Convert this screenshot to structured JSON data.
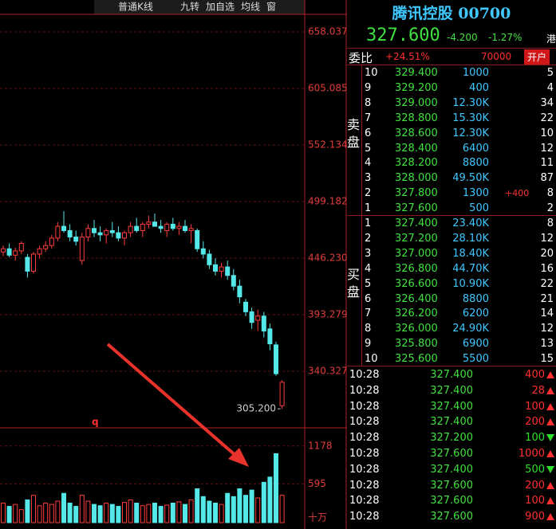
{
  "toolbar": {
    "items": [
      "普通K线",
      "九转",
      "加自选",
      "均线",
      "窗"
    ]
  },
  "quote": {
    "name": "腾讯控股 00700",
    "price": "327.600",
    "change": "-4.200",
    "change_pct": "-1.27%",
    "market": "港"
  },
  "ratio": {
    "label": "委比",
    "value": "+24.51%",
    "diff": "70000",
    "button": "开户"
  },
  "sell": {
    "label": "卖盘",
    "rows": [
      {
        "level": "10",
        "price": "329.400",
        "volume": "1000",
        "count": "5"
      },
      {
        "level": "9",
        "price": "329.200",
        "volume": "400",
        "count": "4"
      },
      {
        "level": "8",
        "price": "329.000",
        "volume": "12.30K",
        "count": "34"
      },
      {
        "level": "7",
        "price": "328.800",
        "volume": "15.30K",
        "count": "22"
      },
      {
        "level": "6",
        "price": "328.600",
        "volume": "12.30K",
        "count": "10"
      },
      {
        "level": "5",
        "price": "328.400",
        "volume": "6400",
        "count": "12"
      },
      {
        "level": "4",
        "price": "328.200",
        "volume": "8800",
        "count": "11"
      },
      {
        "level": "3",
        "price": "328.000",
        "volume": "49.50K",
        "count": "87"
      },
      {
        "level": "2",
        "price": "327.800",
        "volume": "1300",
        "change": "+400",
        "count": "8"
      },
      {
        "level": "1",
        "price": "327.600",
        "volume": "500",
        "count": "2"
      }
    ]
  },
  "buy": {
    "label": "买盘",
    "rows": [
      {
        "level": "1",
        "price": "327.400",
        "volume": "23.40K",
        "count": "8"
      },
      {
        "level": "2",
        "price": "327.200",
        "volume": "28.10K",
        "count": "12"
      },
      {
        "level": "3",
        "price": "327.000",
        "volume": "18.40K",
        "count": "20"
      },
      {
        "level": "4",
        "price": "326.800",
        "volume": "44.70K",
        "count": "16"
      },
      {
        "level": "5",
        "price": "326.600",
        "volume": "10.90K",
        "count": "22"
      },
      {
        "level": "6",
        "price": "326.400",
        "volume": "8800",
        "count": "21"
      },
      {
        "level": "7",
        "price": "326.200",
        "volume": "6200",
        "count": "14"
      },
      {
        "level": "8",
        "price": "326.000",
        "volume": "24.90K",
        "count": "12"
      },
      {
        "level": "9",
        "price": "325.800",
        "volume": "6900",
        "count": "13"
      },
      {
        "level": "10",
        "price": "325.600",
        "volume": "5500",
        "count": "15"
      }
    ]
  },
  "trades": [
    {
      "time": "10:28",
      "price": "327.400",
      "volume": "400",
      "dir": "up"
    },
    {
      "time": "10:28",
      "price": "327.400",
      "volume": "28",
      "dir": "up"
    },
    {
      "time": "10:28",
      "price": "327.400",
      "volume": "100",
      "dir": "up"
    },
    {
      "time": "10:28",
      "price": "327.400",
      "volume": "200",
      "dir": "up"
    },
    {
      "time": "10:28",
      "price": "327.200",
      "volume": "100",
      "dir": "down"
    },
    {
      "time": "10:28",
      "price": "327.600",
      "volume": "1000",
      "dir": "up"
    },
    {
      "time": "10:28",
      "price": "327.400",
      "volume": "500",
      "dir": "down"
    },
    {
      "time": "10:28",
      "price": "327.600",
      "volume": "200",
      "dir": "up"
    },
    {
      "time": "10:28",
      "price": "327.600",
      "volume": "100",
      "dir": "up"
    },
    {
      "time": "10:28",
      "price": "327.600",
      "volume": "900",
      "dir": "up"
    }
  ],
  "chart": {
    "ylim": [
      288.87,
      674.44
    ],
    "yticks": [
      340.327,
      393.279,
      {
        "value": 446.23,
        "label": "446.230"
      },
      499.182,
      552.134,
      605.085,
      658.037
    ],
    "low_label": "305.200",
    "marker": "q",
    "candles": [
      [
        452,
        458,
        448,
        455
      ],
      [
        455,
        460,
        447,
        449
      ],
      [
        449,
        456,
        444,
        453
      ],
      [
        453,
        462,
        450,
        460
      ],
      [
        447,
        450,
        428,
        434
      ],
      [
        434,
        452,
        432,
        450
      ],
      [
        450,
        458,
        446,
        455
      ],
      [
        455,
        462,
        452,
        458
      ],
      [
        458,
        468,
        455,
        465
      ],
      [
        465,
        480,
        462,
        476
      ],
      [
        476,
        490,
        470,
        472
      ],
      [
        472,
        478,
        462,
        466
      ],
      [
        466,
        472,
        458,
        462
      ],
      [
        444,
        470,
        440,
        466
      ],
      [
        466,
        478,
        462,
        474
      ],
      [
        474,
        482,
        466,
        470
      ],
      [
        470,
        476,
        462,
        468
      ],
      [
        468,
        474,
        460,
        472
      ],
      [
        472,
        480,
        466,
        470
      ],
      [
        470,
        476,
        462,
        465
      ],
      [
        465,
        472,
        458,
        470
      ],
      [
        470,
        480,
        466,
        476
      ],
      [
        476,
        484,
        470,
        472
      ],
      [
        472,
        480,
        466,
        478
      ],
      [
        478,
        486,
        474,
        480
      ],
      [
        480,
        488,
        476,
        476
      ],
      [
        476,
        482,
        470,
        474
      ],
      [
        472,
        480,
        466,
        478
      ],
      [
        478,
        484,
        472,
        474
      ],
      [
        474,
        480,
        468,
        476
      ],
      [
        476,
        482,
        470,
        472
      ],
      [
        472,
        478,
        460,
        474
      ],
      [
        472,
        474,
        452,
        455
      ],
      [
        455,
        462,
        446,
        450
      ],
      [
        450,
        454,
        436,
        440
      ],
      [
        440,
        446,
        430,
        434
      ],
      [
        434,
        442,
        428,
        438
      ],
      [
        438,
        444,
        426,
        430
      ],
      [
        430,
        436,
        416,
        420
      ],
      [
        420,
        426,
        404,
        410
      ],
      [
        405,
        408,
        392,
        396
      ],
      [
        396,
        400,
        380,
        386
      ],
      [
        388,
        398,
        378,
        392
      ],
      [
        392,
        396,
        372,
        378
      ],
      [
        380,
        385,
        360,
        366
      ],
      [
        365,
        368,
        336,
        338
      ],
      [
        308,
        332,
        305.2,
        330
      ]
    ],
    "volume": [
      300,
      250,
      280,
      200,
      350,
      420,
      260,
      300,
      280,
      330,
      450,
      300,
      250,
      420,
      330,
      280,
      260,
      300,
      280,
      250,
      310,
      350,
      300,
      260,
      280,
      300,
      250,
      270,
      300,
      320,
      280,
      350,
      520,
      400,
      330,
      300,
      280,
      450,
      400,
      520,
      420,
      500,
      380,
      620,
      700,
      1060,
      420
    ],
    "vlim": [
      0,
      1420
    ],
    "vticks": [
      595,
      1178
    ],
    "vunit": "十万"
  }
}
